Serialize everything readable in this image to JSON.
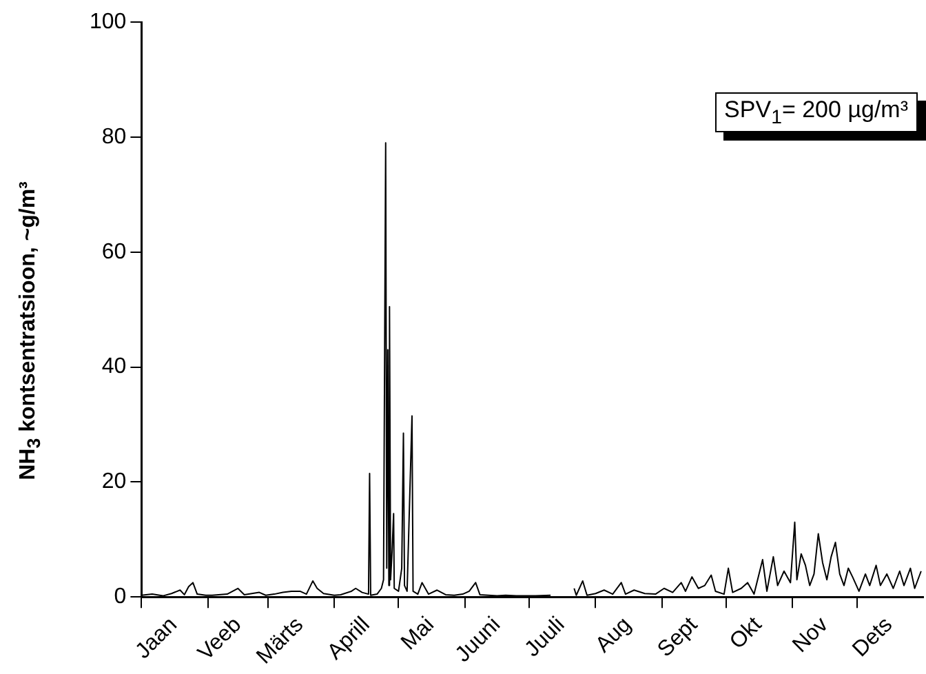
{
  "chart_data": {
    "type": "line",
    "ylabel": "NH$_{3}$ kontsentratsioon, ~g/m³",
    "annotations": [
      "SPV$_{1}$= 200 µg/m³"
    ],
    "marker": "none",
    "line_style": "solid",
    "x": [
      "--01-01",
      "--01-06",
      "--01-11",
      "--01-15",
      "--01-19",
      "--01-21",
      "--01-23",
      "--01-25",
      "--01-27",
      "--01-31",
      "--02-03",
      "--02-10",
      "--02-15",
      "--02-18",
      "--02-25",
      "--02-28",
      "--03-04",
      "--03-08",
      "--03-12",
      "--03-16",
      "--03-19",
      "--03-22",
      "--03-24",
      "--03-27",
      "--04-01",
      "--04-04",
      "--04-09",
      "--04-11",
      "--04-14",
      "--04-17",
      "--04-17T12:00",
      "--04-18",
      "--04-21",
      "--04-23",
      "--04-24",
      "--04-25",
      "--04-25T12:00",
      "--04-26",
      "--04-26T12:00",
      "--04-26T19:00",
      "--04-27T07:00",
      "--04-28",
      "--04-28T17:00",
      "--04-29",
      "--05-01",
      "--05-02T12:00",
      "--05-03T07:00",
      "--05-03T19:00",
      "--05-05",
      "--05-07T07:00",
      "--05-07T19:00",
      "--05-10",
      "--05-12",
      "--05-15",
      "--05-19",
      "--05-23",
      "--05-27",
      "--05-31",
      "--06-03",
      "--06-06",
      "--06-08",
      "--06-12",
      "--06-16",
      "--06-20",
      "--06-25",
      "--06-30",
      "--07-04",
      "--07-11",
      "--07-12",
      "--07-22",
      "--07-23",
      "--07-26",
      "--07-28",
      "--08-01",
      "--08-05",
      "--08-09",
      "--08-13",
      "--08-15",
      "--08-19",
      "--08-24",
      "--08-29",
      "--09-02",
      "--09-06",
      "--09-10",
      "--09-12",
      "--09-15",
      "--09-18",
      "--09-21",
      "--09-24",
      "--09-26",
      "--09-30",
      "--10-02",
      "--10-04",
      "--10-08",
      "--10-11",
      "--10-14",
      "--10-18",
      "--10-20",
      "--10-23",
      "--10-25",
      "--10-28",
      "--10-31",
      "--11-02",
      "--11-03",
      "--11-05",
      "--11-07",
      "--11-09",
      "--11-11",
      "--11-13",
      "--11-15",
      "--11-17",
      "--11-19",
      "--11-21",
      "--11-23",
      "--11-25",
      "--11-27",
      "--11-29",
      "--12-02",
      "--12-05",
      "--12-07",
      "--12-10",
      "--12-12",
      "--12-15",
      "--12-18",
      "--12-21",
      "--12-23",
      "--12-26",
      "--12-28",
      "--12-31"
    ],
    "series": [
      {
        "color": "#000000",
        "values": [
          0.3,
          0.5,
          0.2,
          0.6,
          1.2,
          0.4,
          1.8,
          2.5,
          0.5,
          0.3,
          0.3,
          0.5,
          1.5,
          0.4,
          0.8,
          0.3,
          0.5,
          0.8,
          1.0,
          1.0,
          0.5,
          2.8,
          1.5,
          0.6,
          0.3,
          0.4,
          1.0,
          1.5,
          0.8,
          0.5,
          21.5,
          0.3,
          0.5,
          1.5,
          3,
          79,
          5,
          43,
          2,
          50.5,
          3,
          8,
          14.5,
          1.5,
          1,
          5,
          28.5,
          2,
          1,
          31.5,
          1,
          0.5,
          2.5,
          0.5,
          1.2,
          0.4,
          0.3,
          0.5,
          1,
          2.5,
          0.4,
          0.3,
          0.2,
          0.3,
          0.2,
          0.2,
          0.2,
          0.3,
          null,
          1.5,
          0.3,
          2.8,
          0.3,
          0.6,
          1.2,
          0.5,
          2.5,
          0.5,
          1.2,
          0.6,
          0.5,
          1.5,
          0.8,
          2.5,
          1,
          3.5,
          1.5,
          2,
          3.8,
          1,
          0.5,
          5,
          0.8,
          1.5,
          2.5,
          0.5,
          6.5,
          1,
          7,
          2,
          4.5,
          2.5,
          13,
          3,
          7.5,
          5.5,
          2,
          4,
          11,
          6,
          3,
          7,
          9.5,
          4,
          2,
          5,
          3.5,
          1,
          4,
          2,
          5.5,
          2,
          4,
          1.5,
          4.5,
          2,
          5,
          1.5,
          4.5
        ]
      }
    ],
    "xlim": [
      "--01-01",
      "--12-31T23:59"
    ],
    "xticks": [
      {
        "value": "--01-01",
        "label": null
      },
      {
        "value": "--01-16",
        "label": "Jaan"
      },
      {
        "value": "--02-01",
        "label": null
      },
      {
        "value": "--02-15",
        "label": "Veeb"
      },
      {
        "value": "--03-01",
        "label": null
      },
      {
        "value": "--03-16",
        "label": "Märts"
      },
      {
        "value": "--04-01",
        "label": null
      },
      {
        "value": "--04-16",
        "label": "Aprill"
      },
      {
        "value": "--05-01",
        "label": null
      },
      {
        "value": "--05-16",
        "label": "Mai"
      },
      {
        "value": "--06-01",
        "label": null
      },
      {
        "value": "--06-16",
        "label": "Juuni"
      },
      {
        "value": "--07-01",
        "label": null
      },
      {
        "value": "--07-16",
        "label": "Juuli"
      },
      {
        "value": "--08-01",
        "label": null
      },
      {
        "value": "--08-16",
        "label": "Aug"
      },
      {
        "value": "--09-01",
        "label": null
      },
      {
        "value": "--09-16",
        "label": "Sept"
      },
      {
        "value": "--10-01",
        "label": null
      },
      {
        "value": "--10-16",
        "label": "Okt"
      },
      {
        "value": "--11-01",
        "label": null
      },
      {
        "value": "--11-16",
        "label": "Nov"
      },
      {
        "value": "--12-01",
        "label": null
      },
      {
        "value": "--12-16",
        "label": "Dets"
      }
    ],
    "ylim": [
      0,
      100
    ],
    "yticks": [
      0,
      20,
      40,
      60,
      80,
      100
    ]
  }
}
